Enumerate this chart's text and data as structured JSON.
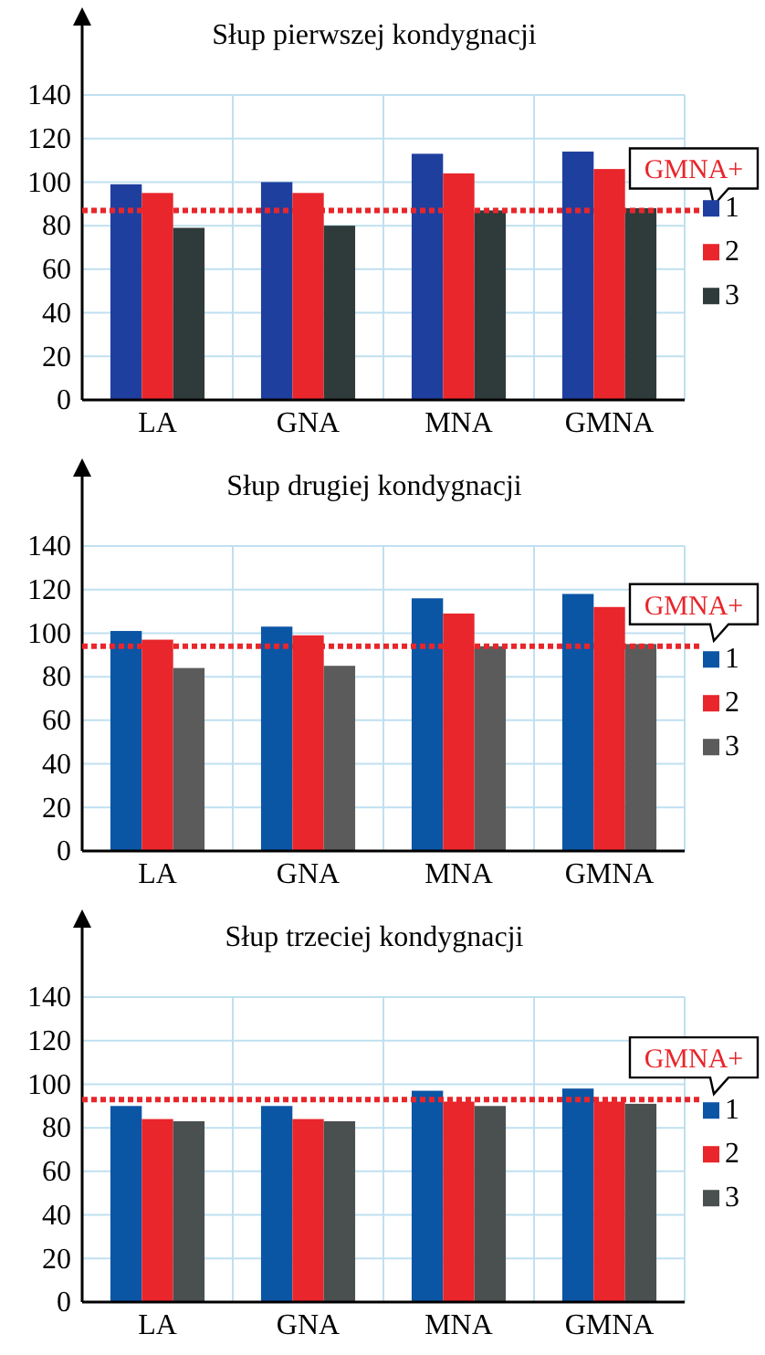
{
  "chart_data": [
    {
      "type": "bar",
      "title": "Słup pierwszej kondygnacji",
      "categories": [
        "LA",
        "GNA",
        "MNA",
        "GMNA"
      ],
      "series": [
        {
          "name": "1",
          "color": "#1f3f9e",
          "values": [
            99,
            100,
            113,
            114
          ]
        },
        {
          "name": "2",
          "color": "#e8262b",
          "values": [
            95,
            95,
            104,
            106
          ]
        },
        {
          "name": "3",
          "color": "#2f3b3b",
          "values": [
            79,
            80,
            87,
            88
          ]
        }
      ],
      "ylim": [
        0,
        140
      ],
      "yticks": [
        0,
        20,
        40,
        60,
        80,
        100,
        120,
        140
      ],
      "grid": true,
      "legend": "right",
      "ref_lines": [
        {
          "axis": "y",
          "value": 87,
          "label": "GMNA+",
          "color": "#e8262b",
          "line_style": "dotted"
        }
      ]
    },
    {
      "type": "bar",
      "title": "Słup drugiej kondygnacji",
      "categories": [
        "LA",
        "GNA",
        "MNA",
        "GMNA"
      ],
      "series": [
        {
          "name": "1",
          "color": "#0b55a5",
          "values": [
            101,
            103,
            116,
            118
          ]
        },
        {
          "name": "2",
          "color": "#e8262b",
          "values": [
            97,
            99,
            109,
            112
          ]
        },
        {
          "name": "3",
          "color": "#5b5b5b",
          "values": [
            84,
            85,
            94,
            95
          ]
        }
      ],
      "ylim": [
        0,
        140
      ],
      "yticks": [
        0,
        20,
        40,
        60,
        80,
        100,
        120,
        140
      ],
      "grid": true,
      "legend": "right",
      "ref_lines": [
        {
          "axis": "y",
          "value": 94,
          "label": "GMNA+",
          "color": "#e8262b",
          "line_style": "dotted"
        }
      ]
    },
    {
      "type": "bar",
      "title": "Słup trzeciej kondygnacji",
      "categories": [
        "LA",
        "GNA",
        "MNA",
        "GMNA"
      ],
      "series": [
        {
          "name": "1",
          "color": "#0b55a5",
          "values": [
            90,
            90,
            97,
            98
          ]
        },
        {
          "name": "2",
          "color": "#e8262b",
          "values": [
            84,
            84,
            92,
            92
          ]
        },
        {
          "name": "3",
          "color": "#4a5050",
          "values": [
            83,
            83,
            90,
            91
          ]
        }
      ],
      "ylim": [
        0,
        140
      ],
      "yticks": [
        0,
        20,
        40,
        60,
        80,
        100,
        120,
        140
      ],
      "grid": true,
      "legend": "right",
      "ref_lines": [
        {
          "axis": "y",
          "value": 93,
          "label": "GMNA+",
          "color": "#e8262b",
          "line_style": "dotted"
        }
      ]
    }
  ]
}
